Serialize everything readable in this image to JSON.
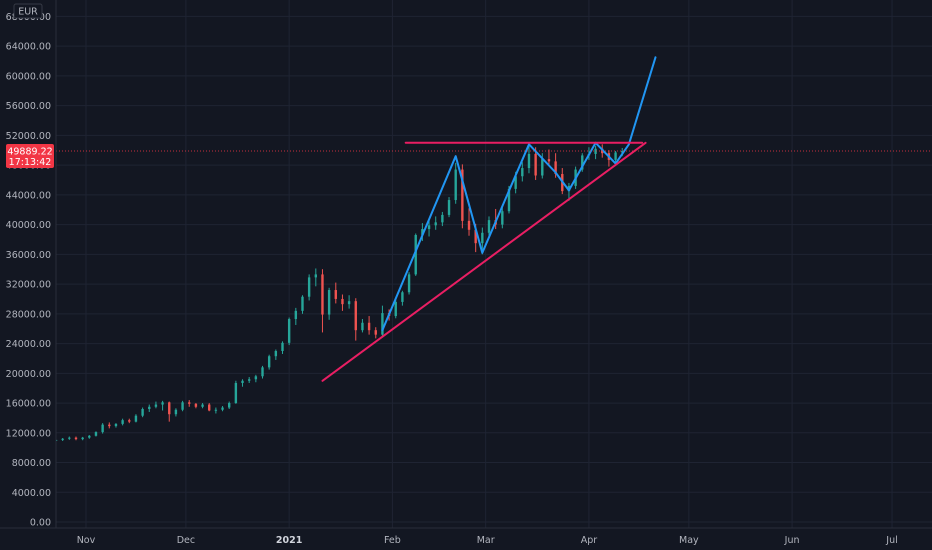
{
  "colors": {
    "background": "#131722",
    "grid": "#1f2433",
    "axis_text": "#b2b5be",
    "up_candle": "#26a69a",
    "down_candle": "#ef5350",
    "pattern_line": "#2196f3",
    "support_line": "#e91e63",
    "price_tag": "#f23645"
  },
  "chart_data": {
    "type": "candlestick",
    "currency": "EUR",
    "y_ticks": [
      "68000.00",
      "64000.00",
      "60000.00",
      "56000.00",
      "52000.00",
      "48000.00",
      "44000.00",
      "40000.00",
      "36000.00",
      "32000.00",
      "28000.00",
      "24000.00",
      "20000.00",
      "16000.00",
      "12000.00",
      "8000.00",
      "4000.00",
      "0.00"
    ],
    "ylim": [
      -800,
      70200
    ],
    "x_ticks": [
      "Nov",
      "Dec",
      "2021",
      "Feb",
      "Mar",
      "Apr",
      "May",
      "Jun",
      "Jul"
    ],
    "bold_ticks": [
      "2021"
    ],
    "xlim": [
      "2020-10-23",
      "2021-07-13"
    ],
    "current_price": {
      "label": "49889.22",
      "countdown": "17:13:42",
      "value": 49889.22
    },
    "grid": true,
    "candles": [
      [
        "2020-10-23",
        10900,
        11200,
        10750,
        11050
      ],
      [
        "2020-10-25",
        11050,
        11300,
        10900,
        11200
      ],
      [
        "2020-10-27",
        11200,
        11500,
        11050,
        11350
      ],
      [
        "2020-10-29",
        11350,
        11500,
        11000,
        11150
      ],
      [
        "2020-10-31",
        11150,
        11450,
        11000,
        11350
      ],
      [
        "2020-11-02",
        11350,
        11700,
        11200,
        11600
      ],
      [
        "2020-11-04",
        11600,
        12200,
        11500,
        12100
      ],
      [
        "2020-11-06",
        12100,
        13300,
        11900,
        13100
      ],
      [
        "2020-11-08",
        13100,
        13400,
        12600,
        12900
      ],
      [
        "2020-11-10",
        12900,
        13300,
        12700,
        13200
      ],
      [
        "2020-11-12",
        13200,
        13900,
        13000,
        13700
      ],
      [
        "2020-11-14",
        13700,
        13900,
        13300,
        13500
      ],
      [
        "2020-11-16",
        13500,
        14500,
        13400,
        14300
      ],
      [
        "2020-11-18",
        14300,
        15400,
        14100,
        15200
      ],
      [
        "2020-11-20",
        15200,
        15800,
        14800,
        15500
      ],
      [
        "2020-11-22",
        15500,
        16200,
        15300,
        15800
      ],
      [
        "2020-11-24",
        15800,
        16300,
        15000,
        16100
      ],
      [
        "2020-11-26",
        16100,
        16200,
        13500,
        14500
      ],
      [
        "2020-11-28",
        14500,
        15300,
        14200,
        15100
      ],
      [
        "2020-11-30",
        15100,
        16300,
        14900,
        16100
      ],
      [
        "2020-12-02",
        16100,
        16400,
        15500,
        15900
      ],
      [
        "2020-12-04",
        15900,
        16000,
        15300,
        15500
      ],
      [
        "2020-12-06",
        15500,
        16000,
        15300,
        15800
      ],
      [
        "2020-12-08",
        15800,
        16000,
        14900,
        15000
      ],
      [
        "2020-12-10",
        15000,
        15400,
        14600,
        15100
      ],
      [
        "2020-12-12",
        15100,
        15600,
        14900,
        15400
      ],
      [
        "2020-12-14",
        15400,
        16200,
        15200,
        16000
      ],
      [
        "2020-12-16",
        16000,
        19000,
        15900,
        18700
      ],
      [
        "2020-12-18",
        18700,
        19200,
        18200,
        19000
      ],
      [
        "2020-12-20",
        19000,
        19500,
        18700,
        19200
      ],
      [
        "2020-12-22",
        19200,
        19800,
        18800,
        19600
      ],
      [
        "2020-12-24",
        19600,
        21000,
        19300,
        20800
      ],
      [
        "2020-12-26",
        20800,
        22500,
        20500,
        22300
      ],
      [
        "2020-12-28",
        22300,
        23200,
        21800,
        23000
      ],
      [
        "2020-12-30",
        23000,
        24300,
        22600,
        24100
      ],
      [
        "2021-01-01",
        24100,
        27500,
        23800,
        27300
      ],
      [
        "2021-01-03",
        27300,
        28800,
        26500,
        28400
      ],
      [
        "2021-01-05",
        28400,
        30500,
        28000,
        30300
      ],
      [
        "2021-01-07",
        30300,
        33300,
        29800,
        32900
      ],
      [
        "2021-01-09",
        32900,
        34100,
        31700,
        33300
      ],
      [
        "2021-01-11",
        33300,
        34000,
        25500,
        27900
      ],
      [
        "2021-01-13",
        27900,
        31500,
        27200,
        31200
      ],
      [
        "2021-01-15",
        31200,
        32200,
        29400,
        30000
      ],
      [
        "2021-01-17",
        30000,
        30600,
        28400,
        29300
      ],
      [
        "2021-01-19",
        29300,
        30500,
        28700,
        29700
      ],
      [
        "2021-01-21",
        29700,
        30100,
        24400,
        25800
      ],
      [
        "2021-01-23",
        25800,
        27300,
        25500,
        26800
      ],
      [
        "2021-01-25",
        26800,
        27700,
        25200,
        25800
      ],
      [
        "2021-01-27",
        25800,
        26200,
        24700,
        25200
      ],
      [
        "2021-01-29",
        25200,
        29100,
        25000,
        28100
      ],
      [
        "2021-01-31",
        28100,
        28600,
        27100,
        27700
      ],
      [
        "2021-02-02",
        27700,
        29900,
        27400,
        29600
      ],
      [
        "2021-02-04",
        29600,
        31100,
        29100,
        30900
      ],
      [
        "2021-02-06",
        30900,
        33600,
        30600,
        33300
      ],
      [
        "2021-02-08",
        33300,
        38800,
        33100,
        38600
      ],
      [
        "2021-02-10",
        38600,
        40200,
        37800,
        39400
      ],
      [
        "2021-02-12",
        39400,
        40600,
        38400,
        39900
      ],
      [
        "2021-02-14",
        39900,
        41100,
        39300,
        40300
      ],
      [
        "2021-02-16",
        40300,
        41700,
        39800,
        41300
      ],
      [
        "2021-02-18",
        41300,
        43700,
        41000,
        43300
      ],
      [
        "2021-02-20",
        43300,
        48300,
        42800,
        47400
      ],
      [
        "2021-02-22",
        47400,
        48100,
        39500,
        40500
      ],
      [
        "2021-02-24",
        40500,
        42200,
        38500,
        39300
      ],
      [
        "2021-02-26",
        39300,
        40100,
        36300,
        37500
      ],
      [
        "2021-02-28",
        37500,
        39600,
        36000,
        38900
      ],
      [
        "2021-03-02",
        38900,
        41100,
        38200,
        40600
      ],
      [
        "2021-03-04",
        40600,
        42100,
        39400,
        40000
      ],
      [
        "2021-03-06",
        40000,
        42300,
        39500,
        41800
      ],
      [
        "2021-03-08",
        41800,
        45200,
        41500,
        44800
      ],
      [
        "2021-03-10",
        44800,
        47100,
        44200,
        46500
      ],
      [
        "2021-03-12",
        46500,
        48400,
        45800,
        47600
      ],
      [
        "2021-03-14",
        47600,
        50800,
        46900,
        49500
      ],
      [
        "2021-03-16",
        49500,
        50400,
        46000,
        46600
      ],
      [
        "2021-03-18",
        46600,
        49600,
        46200,
        48800
      ],
      [
        "2021-03-20",
        48800,
        50100,
        47900,
        48500
      ],
      [
        "2021-03-22",
        48500,
        49600,
        46300,
        46800
      ],
      [
        "2021-03-24",
        46800,
        47600,
        44100,
        44500
      ],
      [
        "2021-03-26",
        44500,
        45600,
        43200,
        45200
      ],
      [
        "2021-03-28",
        45200,
        47800,
        44800,
        47400
      ],
      [
        "2021-03-30",
        47400,
        49600,
        47100,
        49300
      ],
      [
        "2021-04-01",
        49300,
        50400,
        48700,
        49500
      ],
      [
        "2021-04-03",
        49500,
        50600,
        48800,
        50200
      ],
      [
        "2021-04-05",
        50200,
        50800,
        49000,
        49600
      ],
      [
        "2021-04-07",
        49600,
        50000,
        47800,
        48700
      ],
      [
        "2021-04-09",
        48700,
        49900,
        48200,
        49700
      ],
      [
        "2021-04-11",
        49700,
        50300,
        49200,
        49889.22
      ]
    ]
  },
  "drawings": [
    {
      "name": "pattern-zigzag",
      "color": "#2196f3",
      "points": [
        [
          "2021-01-29",
          25800
        ],
        [
          "2021-02-20",
          49200
        ],
        [
          "2021-02-28",
          36200
        ],
        [
          "2021-03-14",
          50800
        ],
        [
          "2021-03-22",
          47000
        ],
        [
          "2021-03-26",
          44600
        ],
        [
          "2021-04-03",
          51000
        ],
        [
          "2021-04-09",
          48200
        ],
        [
          "2021-04-13",
          50800
        ],
        [
          "2021-04-21",
          62500
        ]
      ]
    },
    {
      "name": "resistance-line",
      "color": "#e91e63",
      "points": [
        [
          "2021-02-05",
          51000
        ],
        [
          "2021-04-17",
          51000
        ]
      ]
    },
    {
      "name": "support-line",
      "color": "#e91e63",
      "points": [
        [
          "2021-01-11",
          19000
        ],
        [
          "2021-04-18",
          51000
        ]
      ]
    }
  ]
}
